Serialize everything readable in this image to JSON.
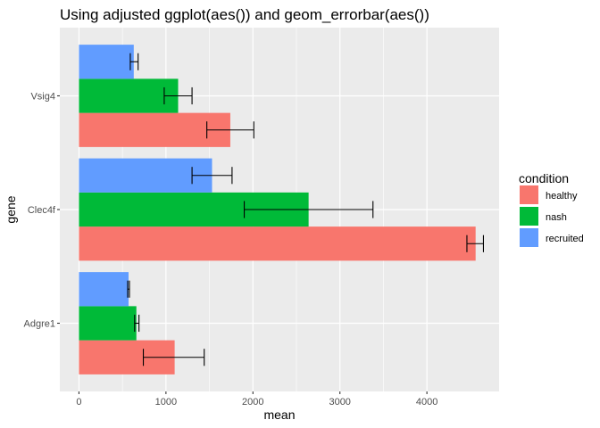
{
  "chart_data": {
    "type": "bar",
    "orientation": "horizontal",
    "title": "Using adjusted ggplot(aes()) and geom_errorbar(aes())",
    "xlabel": "mean",
    "ylabel": "gene",
    "categories": [
      "Adgre1",
      "Clec4f",
      "Vsig4"
    ],
    "xlim": [
      -220,
      4830
    ],
    "x_ticks": [
      0,
      1000,
      2000,
      3000,
      4000
    ],
    "x_tick_labels": [
      "0",
      "1000",
      "2000",
      "3000",
      "4000"
    ],
    "grid": true,
    "legend": {
      "title": "condition",
      "position": "right"
    },
    "series": [
      {
        "name": "healthy",
        "color": "#F8766D",
        "values": [
          1100,
          4560,
          1740
        ],
        "error_low": [
          740,
          4460,
          1470
        ],
        "error_high": [
          1440,
          4650,
          2010
        ]
      },
      {
        "name": "nash",
        "color": "#00BA38",
        "values": [
          660,
          2640,
          1140
        ],
        "error_low": [
          640,
          1900,
          980
        ],
        "error_high": [
          690,
          3380,
          1300
        ]
      },
      {
        "name": "recruited",
        "color": "#619CFF",
        "values": [
          570,
          1530,
          630
        ],
        "error_low": [
          560,
          1300,
          590
        ],
        "error_high": [
          580,
          1760,
          680
        ]
      }
    ]
  }
}
